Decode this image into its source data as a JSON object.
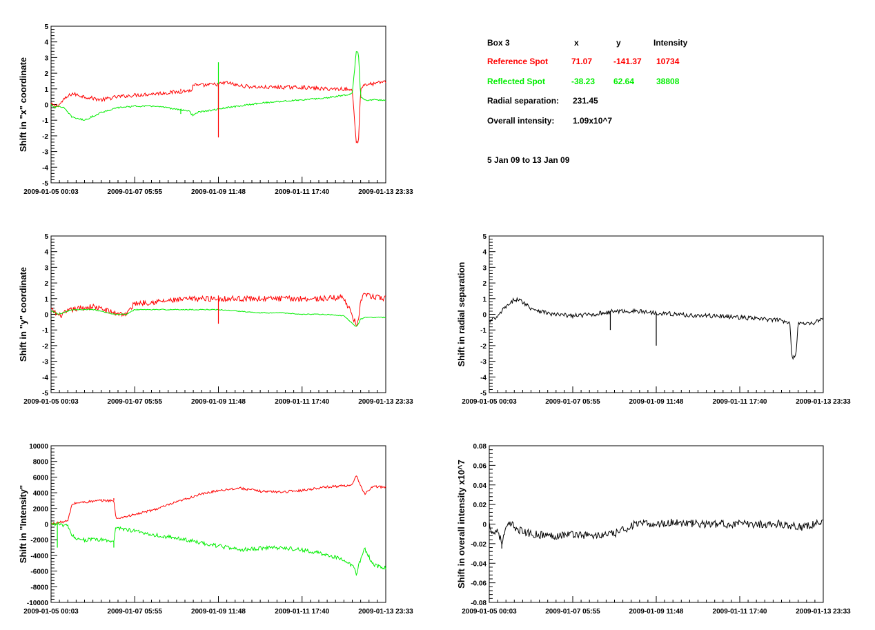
{
  "info": {
    "box_label": "Box 3",
    "col_x": "x",
    "col_y": "y",
    "col_intensity": "Intensity",
    "reference": {
      "label": "Reference Spot",
      "x": "71.07",
      "y": "-141.37",
      "intensity": "10734"
    },
    "reflected": {
      "label": "Reflected Spot",
      "x": "-38.23",
      "y": "62.64",
      "intensity": "38808"
    },
    "radial_label": "Radial separation:",
    "radial_value": "231.45",
    "overall_label": "Overall intensity:",
    "overall_value": "1.09x10^7",
    "date_range": "5 Jan 09 to 13 Jan 09"
  },
  "colors": {
    "reference": "#ff0000",
    "reflected": "#00ee00",
    "single": "#000000"
  },
  "chart_data": [
    {
      "id": "x-shift",
      "type": "line",
      "ylabel": "Shift in \"x\" coordinate",
      "ylim": [
        -5,
        5
      ],
      "yticks": [
        -5,
        -4,
        -3,
        -2,
        -1,
        0,
        1,
        2,
        3,
        4,
        5
      ],
      "xticks": [
        "2009-01-05 00:03",
        "2009-01-07 05:55",
        "2009-01-09 11:48",
        "2009-01-11 17:40",
        "2009-01-13 23:33"
      ],
      "xlim": [
        0,
        8
      ],
      "x": [
        0,
        0.1,
        0.2,
        0.3,
        0.5,
        0.8,
        1.2,
        1.6,
        2.0,
        2.5,
        3.0,
        3.3,
        3.35,
        3.4,
        3.5,
        4.0,
        4.2,
        4.5,
        5.0,
        5.5,
        6.0,
        6.5,
        7.0,
        7.2,
        7.3,
        7.35,
        7.4,
        7.5,
        7.7,
        8.0
      ],
      "series": [
        {
          "name": "Reference Spot",
          "color": "#ff0000",
          "noise": 0.12,
          "values": [
            0,
            -0.1,
            0,
            0.3,
            0.7,
            0.5,
            0.3,
            0.5,
            0.6,
            0.7,
            0.8,
            0.9,
            0.8,
            1.3,
            1.2,
            1.3,
            1.4,
            1.2,
            1.1,
            1.1,
            1.1,
            1.0,
            1.0,
            0.9,
            -2.5,
            -2.3,
            1.0,
            1.3,
            1.3,
            1.5
          ]
        },
        {
          "name": "Reflected Spot",
          "color": "#00ee00",
          "noise": 0.05,
          "values": [
            0,
            -0.2,
            -0.1,
            -0.2,
            -0.8,
            -1.0,
            -0.5,
            -0.2,
            -0.1,
            -0.1,
            -0.3,
            -0.4,
            -0.6,
            -0.7,
            -0.5,
            -0.3,
            -0.2,
            -0.1,
            0.1,
            0.2,
            0.3,
            0.4,
            0.6,
            0.7,
            3.5,
            3.2,
            0.5,
            0.3,
            0.3,
            0.3
          ]
        }
      ],
      "spikes": [
        {
          "x": 3.1,
          "series": 1,
          "to": -0.6
        },
        {
          "x": 3.1,
          "series": 0,
          "to": 1.0
        },
        {
          "x": 4.0,
          "series": 1,
          "to": 2.7
        },
        {
          "x": 4.0,
          "series": 0,
          "to": -2.1
        }
      ]
    },
    {
      "id": "y-shift",
      "type": "line",
      "ylabel": "Shift in \"y\" coordinate",
      "ylim": [
        -5,
        5
      ],
      "yticks": [
        -5,
        -4,
        -3,
        -2,
        -1,
        0,
        1,
        2,
        3,
        4,
        5
      ],
      "xticks": [
        "2009-01-05 00:03",
        "2009-01-07 05:55",
        "2009-01-09 11:48",
        "2009-01-11 17:40",
        "2009-01-13 23:33"
      ],
      "xlim": [
        0,
        8
      ],
      "x": [
        0,
        0.2,
        0.5,
        1.0,
        1.5,
        1.8,
        2.0,
        2.5,
        3.0,
        3.5,
        4.0,
        4.5,
        5.0,
        5.5,
        6.0,
        6.5,
        7.0,
        7.3,
        7.35,
        7.4,
        7.5,
        8.0
      ],
      "series": [
        {
          "name": "Reference Spot",
          "color": "#ff0000",
          "noise": 0.18,
          "values": [
            0.3,
            -0.1,
            0.3,
            0.5,
            0.1,
            0.0,
            0.7,
            0.8,
            0.9,
            1.0,
            1.0,
            1.0,
            1.0,
            1.0,
            1.0,
            1.0,
            1.1,
            -0.7,
            -0.5,
            1.0,
            1.2,
            1.0
          ]
        },
        {
          "name": "Reflected Spot",
          "color": "#00ee00",
          "noise": 0.03,
          "values": [
            0.2,
            0.0,
            0.3,
            0.3,
            0.0,
            0.0,
            0.3,
            0.3,
            0.3,
            0.3,
            0.3,
            0.2,
            0.1,
            0.1,
            0.0,
            0.0,
            -0.1,
            -0.8,
            -0.6,
            -0.3,
            -0.2,
            -0.2
          ]
        }
      ],
      "spikes": [
        {
          "x": 4.0,
          "series": 0,
          "to": -0.6
        },
        {
          "x": 4.0,
          "series": 0,
          "to": 1.2
        }
      ]
    },
    {
      "id": "intensity-shift",
      "type": "line",
      "ylabel": "Shift in \"Intensity\"",
      "ylim": [
        -10000,
        10000
      ],
      "yticks": [
        -10000,
        -8000,
        -6000,
        -4000,
        -2000,
        0,
        2000,
        4000,
        6000,
        8000,
        10000
      ],
      "xticks": [
        "2009-01-05 00:03",
        "2009-01-07 05:55",
        "2009-01-09 11:48",
        "2009-01-11 17:40",
        "2009-01-13 23:33"
      ],
      "xlim": [
        0,
        8
      ],
      "x": [
        0,
        0.2,
        0.4,
        0.5,
        0.6,
        0.8,
        1.2,
        1.5,
        1.55,
        2.0,
        2.5,
        3.0,
        3.5,
        4.0,
        4.5,
        5.0,
        5.5,
        6.0,
        6.5,
        7.0,
        7.2,
        7.3,
        7.4,
        7.5,
        7.7,
        8.0
      ],
      "series": [
        {
          "name": "Reference Spot",
          "color": "#ff0000",
          "noise": 150,
          "values": [
            0,
            200,
            400,
            2500,
            2700,
            2800,
            3000,
            3000,
            700,
            1200,
            1900,
            2800,
            3700,
            4300,
            4600,
            4200,
            4100,
            4300,
            4700,
            4900,
            5000,
            6200,
            4800,
            3900,
            4800,
            4700
          ]
        },
        {
          "name": "Reflected Spot",
          "color": "#00ee00",
          "noise": 250,
          "values": [
            0,
            0,
            -300,
            -1500,
            -1800,
            -2000,
            -2000,
            -2200,
            -400,
            -900,
            -1400,
            -1800,
            -2300,
            -2800,
            -3300,
            -3100,
            -3000,
            -3300,
            -3800,
            -4500,
            -5300,
            -6300,
            -4500,
            -3200,
            -5200,
            -5600
          ]
        }
      ],
      "spikes": [
        {
          "x": 0.15,
          "series": 1,
          "to": -3000
        },
        {
          "x": 1.5,
          "series": 1,
          "to": -3000
        },
        {
          "x": 1.5,
          "series": 0,
          "to": 3300
        }
      ]
    },
    {
      "id": "radial-shift",
      "type": "line",
      "ylabel": "Shift in radial separation",
      "ylim": [
        -5,
        5
      ],
      "yticks": [
        -5,
        -4,
        -3,
        -2,
        -1,
        0,
        1,
        2,
        3,
        4,
        5
      ],
      "xticks": [
        "2009-01-05 00:03",
        "2009-01-07 05:55",
        "2009-01-09 11:48",
        "2009-01-11 17:40",
        "2009-01-13 23:33"
      ],
      "xlim": [
        0,
        8
      ],
      "x": [
        0,
        0.1,
        0.2,
        0.3,
        0.4,
        0.5,
        0.6,
        0.8,
        1.0,
        1.5,
        2.0,
        2.5,
        3.0,
        3.5,
        4.0,
        4.5,
        5.0,
        5.5,
        6.0,
        6.5,
        7.0,
        7.2,
        7.25,
        7.3,
        7.35,
        7.4,
        7.5,
        7.7,
        8.0
      ],
      "series": [
        {
          "name": "",
          "color": "#000000",
          "noise": 0.14,
          "values": [
            -0.5,
            -0.3,
            -0.2,
            0.2,
            0.5,
            0.6,
            1.0,
            0.8,
            0.4,
            0.0,
            -0.1,
            0.0,
            0.2,
            0.2,
            0.1,
            0.0,
            -0.1,
            -0.1,
            -0.2,
            -0.3,
            -0.4,
            -0.5,
            -2.8,
            -2.7,
            -2.5,
            -0.6,
            -0.5,
            -0.6,
            -0.3
          ]
        }
      ],
      "spikes": [
        {
          "x": 4.0,
          "series": 0,
          "to": -2.0
        },
        {
          "x": 2.9,
          "series": 0,
          "to": -1.0
        }
      ]
    },
    {
      "id": "overall-intensity-shift",
      "type": "line",
      "ylabel": "Shift in overall intensity x10^7",
      "ylim": [
        -0.08,
        0.08
      ],
      "yticks": [
        -0.08,
        -0.06,
        -0.04,
        -0.02,
        0,
        0.02,
        0.04,
        0.06,
        0.08
      ],
      "xticks": [
        "2009-01-05 00:03",
        "2009-01-07 05:55",
        "2009-01-09 11:48",
        "2009-01-11 17:40",
        "2009-01-13 23:33"
      ],
      "xlim": [
        0,
        8
      ],
      "x": [
        0,
        0.1,
        0.2,
        0.3,
        0.4,
        0.5,
        0.8,
        1.0,
        1.5,
        2.0,
        2.5,
        3.0,
        3.5,
        4.0,
        4.5,
        5.0,
        5.5,
        6.0,
        6.5,
        7.0,
        7.5,
        8.0
      ],
      "series": [
        {
          "name": "",
          "color": "#000000",
          "noise": 0.004,
          "values": [
            0,
            -0.01,
            -0.005,
            -0.02,
            -0.005,
            0.0,
            -0.008,
            -0.01,
            -0.012,
            -0.01,
            -0.012,
            -0.01,
            0.0,
            0.0,
            0.002,
            0.0,
            0.0,
            0.0,
            0.0,
            0.0,
            -0.003,
            0.002
          ]
        }
      ],
      "spikes": [
        {
          "x": 0.3,
          "series": 0,
          "to": -0.025
        }
      ]
    }
  ]
}
